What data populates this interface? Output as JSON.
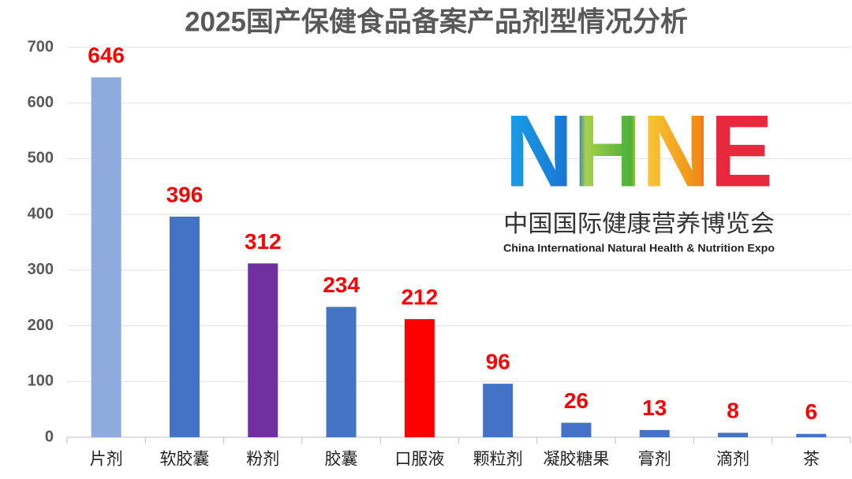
{
  "chart_data": {
    "type": "bar",
    "title": "2025国产保健食品备案产品剂型情况分析",
    "categories": [
      "片剂",
      "软胶囊",
      "粉剂",
      "胶囊",
      "口服液",
      "颗粒剂",
      "凝胶糖果",
      "膏剂",
      "滴剂",
      "茶"
    ],
    "values": [
      646,
      396,
      312,
      234,
      212,
      96,
      26,
      13,
      8,
      6
    ],
    "colors": [
      "#8faadc",
      "#4472c4",
      "#7030a0",
      "#4472c4",
      "#ff0000",
      "#4472c4",
      "#4472c4",
      "#4472c4",
      "#4472c4",
      "#4472c4"
    ],
    "ylim": [
      0,
      700
    ],
    "yticks": [
      0,
      100,
      200,
      300,
      400,
      500,
      600,
      700
    ],
    "grid": true,
    "logo": {
      "mark": "NHNE",
      "name_cn": "中国国际健康营养博览会",
      "name_en": "China International Natural Health & Nutrition Expo"
    }
  }
}
